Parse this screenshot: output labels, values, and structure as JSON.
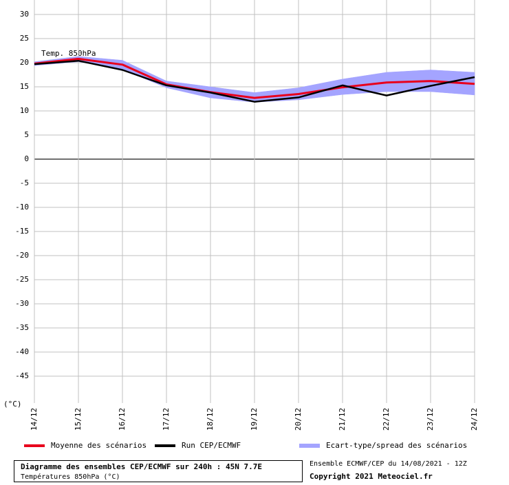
{
  "chart_data": {
    "type": "line",
    "annotation": "Temp. 850hPa",
    "y_unit_label": "(°C)",
    "categories": [
      "14/12",
      "15/12",
      "16/12",
      "17/12",
      "18/12",
      "19/12",
      "20/12",
      "21/12",
      "22/12",
      "23/12",
      "24/12"
    ],
    "ylim": [
      -50,
      30
    ],
    "yticks": [
      -45,
      -40,
      -35,
      -30,
      -25,
      -20,
      -15,
      -10,
      -5,
      0,
      5,
      10,
      15,
      20,
      25,
      30
    ],
    "grid": true,
    "band": {
      "name": "Ecart-type/spread des scénarios",
      "color": "#a4a4ff",
      "upper": [
        20.2,
        21.3,
        20.5,
        16.2,
        15.0,
        13.8,
        14.8,
        16.6,
        18.0,
        18.5,
        18.0
      ],
      "lower": [
        19.4,
        20.2,
        18.6,
        14.8,
        12.7,
        11.8,
        12.3,
        13.4,
        14.0,
        14.0,
        13.3
      ]
    },
    "series": [
      {
        "name": "Moyenne des scénarios",
        "color": "#e8001c",
        "values": [
          19.8,
          20.8,
          19.6,
          15.5,
          13.9,
          12.7,
          13.5,
          14.9,
          15.9,
          16.2,
          15.6
        ]
      },
      {
        "name": "Run CEP/ECMWF",
        "color": "#000000",
        "values": [
          19.7,
          20.4,
          18.5,
          15.3,
          13.8,
          11.9,
          12.8,
          15.3,
          13.2,
          15.2,
          17.0
        ]
      }
    ],
    "footer": {
      "title": "Diagramme des ensembles CEP/ECMWF sur 240h : 45N 7.7E",
      "subtitle": "Températures 850hPa (°C)",
      "run": "Ensemble ECMWF/CEP du 14/08/2021 - 12Z",
      "copyright": "Copyright 2021 Meteociel.fr"
    }
  }
}
